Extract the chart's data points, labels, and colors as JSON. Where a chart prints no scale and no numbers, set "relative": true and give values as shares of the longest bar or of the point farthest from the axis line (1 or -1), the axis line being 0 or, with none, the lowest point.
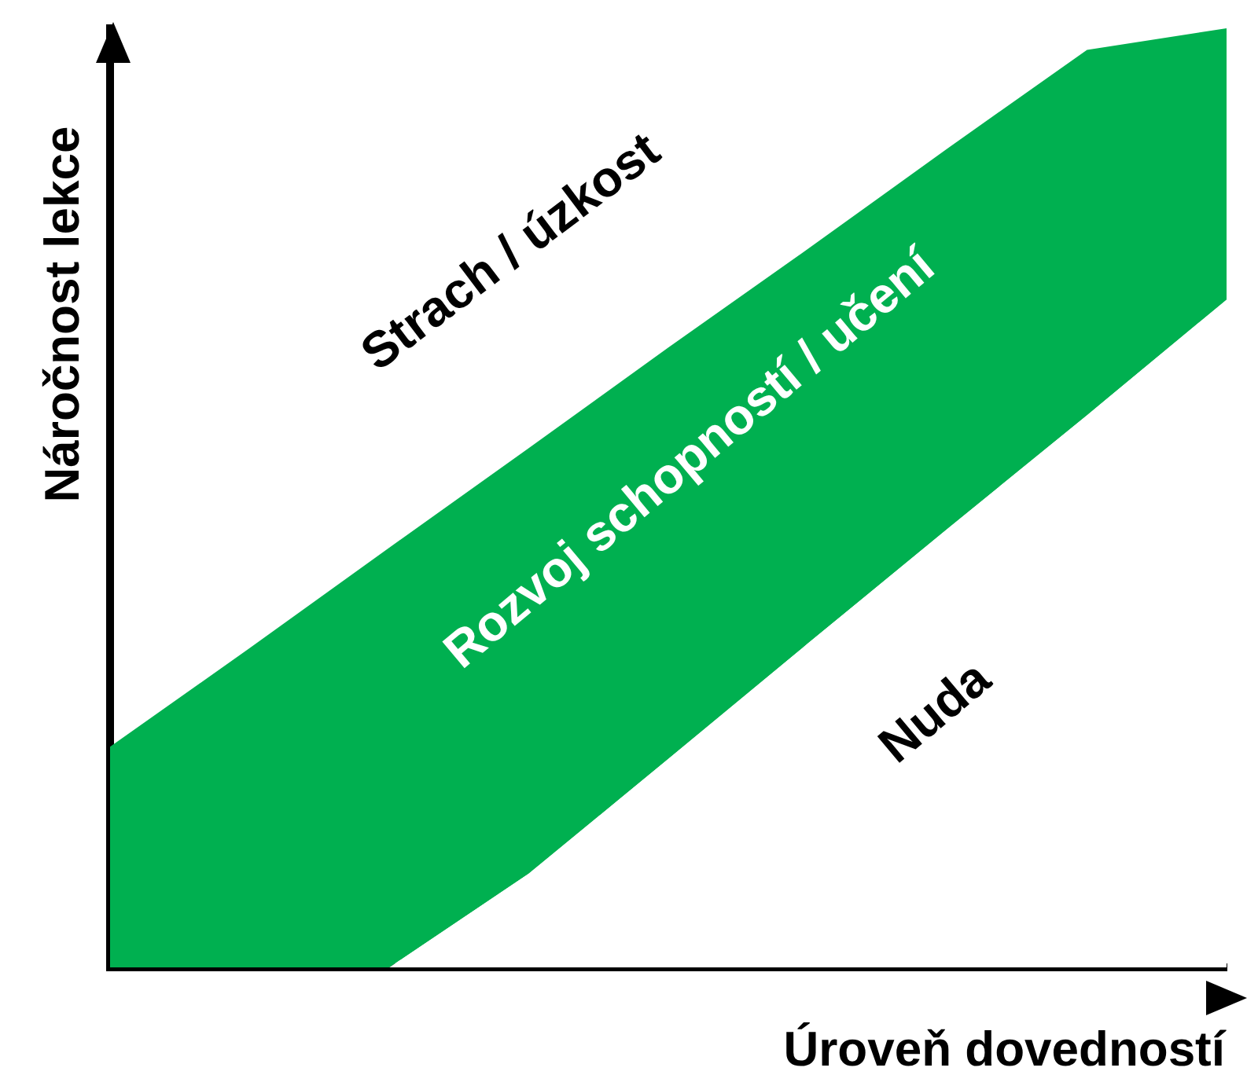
{
  "chart_data": {
    "type": "area",
    "relative": true,
    "stacked": true,
    "categories": [
      null,
      null,
      null,
      null,
      null,
      null,
      null,
      null,
      null
    ],
    "series": [
      {
        "color": "#ffffff",
        "values": [
          0,
          0,
          0,
          0.1,
          0.222,
          0.345,
          0.467,
          0.588,
          0.711
        ]
      },
      {
        "color": "#00b050",
        "values": [
          0.235,
          0.34,
          0.447,
          0.453,
          0.438,
          0.42,
          0.405,
          0.389,
          0.289
        ]
      }
    ],
    "xlabel": "Úroveň dovedností",
    "ylabel": "Náročnost lekce",
    "annotations": [
      "Strach / úzkost",
      "Rozvoj schopností / učení",
      "Nuda"
    ],
    "grid": false,
    "legend": false,
    "marker": "none"
  }
}
